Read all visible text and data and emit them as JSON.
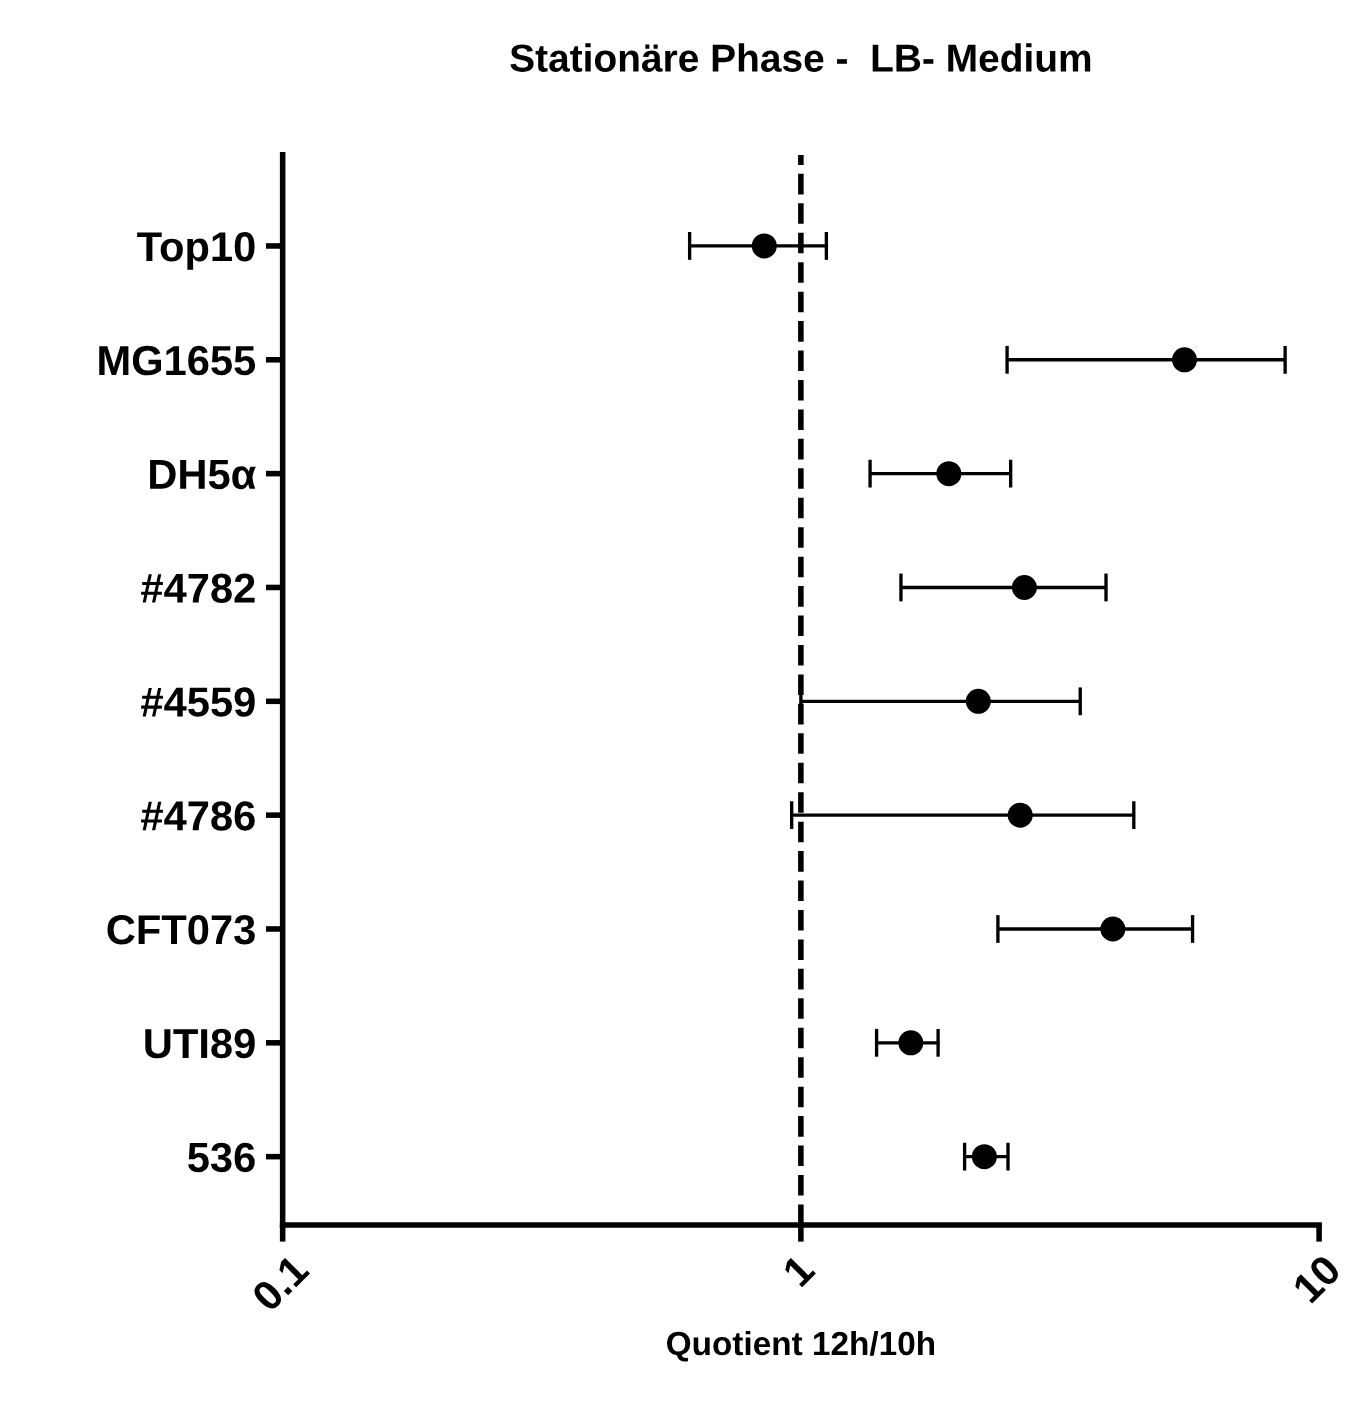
{
  "chart_data": {
    "type": "scatter",
    "title": "Stationäre Phase -  LB- Medium",
    "xlabel": "Quotient 12h/10h",
    "orientation": "horizontal",
    "categories": [
      "Top10",
      "MG1655",
      "DH5α",
      "#4782",
      "#4559",
      "#4786",
      "CFT073",
      "UTI89",
      "536"
    ],
    "values": [
      0.85,
      5.5,
      1.93,
      2.7,
      2.2,
      2.65,
      4.0,
      1.63,
      2.26
    ],
    "errors": [
      [
        0.61,
        1.12
      ],
      [
        2.5,
        8.6
      ],
      [
        1.36,
        2.54
      ],
      [
        1.56,
        3.88
      ],
      [
        1.0,
        3.46
      ],
      [
        0.96,
        4.39
      ],
      [
        2.4,
        5.7
      ],
      [
        1.4,
        1.84
      ],
      [
        2.07,
        2.51
      ]
    ],
    "color": "#000000",
    "marker": "circle",
    "log": "x",
    "xlim": [
      0.1,
      10
    ],
    "xticks": [
      0.1,
      1,
      10
    ],
    "grid": false,
    "ref_lines": [
      {
        "axis": "x",
        "value": 1,
        "line_style": "dashed",
        "color": "#000000"
      }
    ]
  }
}
